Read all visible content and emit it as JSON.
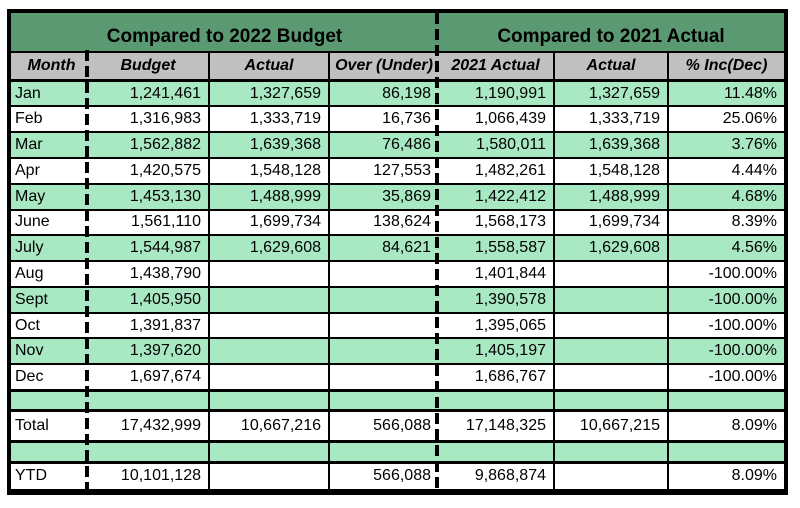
{
  "table": {
    "group_headers": [
      "Compared to 2022 Budget",
      "Compared to 2021 Actual"
    ],
    "column_headers": [
      "Month",
      "Budget",
      "Actual",
      "Over (Under)",
      "2021 Actual",
      "Actual",
      "% Inc(Dec)"
    ],
    "month_rows": [
      [
        "Jan",
        "1,241,461",
        "1,327,659",
        "86,198",
        "1,190,991",
        "1,327,659",
        "11.48%"
      ],
      [
        "Feb",
        "1,316,983",
        "1,333,719",
        "16,736",
        "1,066,439",
        "1,333,719",
        "25.06%"
      ],
      [
        "Mar",
        "1,562,882",
        "1,639,368",
        "76,486",
        "1,580,011",
        "1,639,368",
        "3.76%"
      ],
      [
        "Apr",
        "1,420,575",
        "1,548,128",
        "127,553",
        "1,482,261",
        "1,548,128",
        "4.44%"
      ],
      [
        "May",
        "1,453,130",
        "1,488,999",
        "35,869",
        "1,422,412",
        "1,488,999",
        "4.68%"
      ],
      [
        "June",
        "1,561,110",
        "1,699,734",
        "138,624",
        "1,568,173",
        "1,699,734",
        "8.39%"
      ],
      [
        "July",
        "1,544,987",
        "1,629,608",
        "84,621",
        "1,558,587",
        "1,629,608",
        "4.56%"
      ],
      [
        "Aug",
        "1,438,790",
        "",
        "",
        "1,401,844",
        "",
        "-100.00%"
      ],
      [
        "Sept",
        "1,405,950",
        "",
        "",
        "1,390,578",
        "",
        "-100.00%"
      ],
      [
        "Oct",
        "1,391,837",
        "",
        "",
        "1,395,065",
        "",
        "-100.00%"
      ],
      [
        "Nov",
        "1,397,620",
        "",
        "",
        "1,405,197",
        "",
        "-100.00%"
      ],
      [
        "Dec",
        "1,697,674",
        "",
        "",
        "1,686,767",
        "",
        "-100.00%"
      ]
    ],
    "total_row": [
      "Total",
      "17,432,999",
      "10,667,216",
      "566,088",
      "17,148,325",
      "10,667,215",
      "8.09%"
    ],
    "ytd_row": [
      "YTD",
      "10,101,128",
      "",
      "566,088",
      "9,868,874",
      "",
      "8.09%"
    ]
  },
  "colors": {
    "group_header_green": "#5b9972",
    "row_green": "#a8e8c2",
    "column_header_gray": "#c0c0c0",
    "border_black": "#000000"
  }
}
